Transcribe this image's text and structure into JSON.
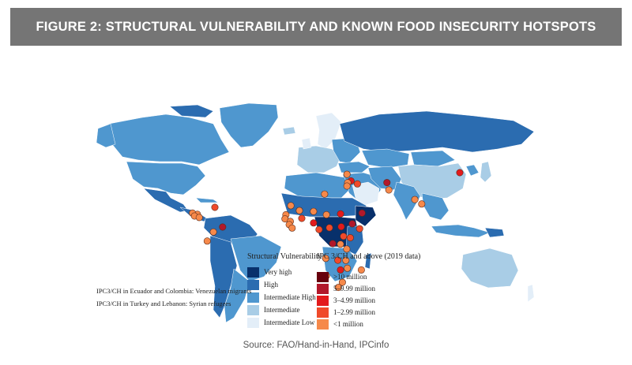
{
  "figure": {
    "title": "FIGURE 2: STRUCTURAL VULNERABILITY AND KNOWN FOOD INSECURITY HOTSPOTS"
  },
  "source": "Source: FAO/Hand-in-Hand, IPCinfo",
  "colors": {
    "banner": "#757575",
    "ocean": "#ffffff"
  },
  "legend_vulnerability": {
    "title": "Structural Vulnerability",
    "items": [
      {
        "label": "Very high",
        "color": "#08306b"
      },
      {
        "label": "High",
        "color": "#2b6cb0"
      },
      {
        "label": "Intermediate High",
        "color": "#4f97cf"
      },
      {
        "label": "Intermediate",
        "color": "#a9cde6"
      },
      {
        "label": "Intermediate Low",
        "color": "#e3eef8"
      }
    ]
  },
  "legend_ipc": {
    "title": "IPC 3/CH and above (2019 data)",
    "items": [
      {
        "label": ">10 million",
        "color": "#67000d"
      },
      {
        "label": "5–9.99 million",
        "color": "#b2182b"
      },
      {
        "label": "3–4.99 million",
        "color": "#e31a1c"
      },
      {
        "label": "1–2.99 million",
        "color": "#f04a2a"
      },
      {
        "label": "<1 million",
        "color": "#f6894a"
      }
    ]
  },
  "notes": [
    "IPC3/CH in Ecuador and Colombia: Venezuelan migrants",
    "IPC3/CH in Turkey and Lebanon: Syrian refugees"
  ],
  "hotspots": [
    {
      "name": "Haiti",
      "lon": -72.3,
      "lat": 19.0,
      "tier": 3
    },
    {
      "name": "Honduras",
      "lon": -86.5,
      "lat": 14.7,
      "tier": 4
    },
    {
      "name": "Guatemala",
      "lon": -90.5,
      "lat": 15.5,
      "tier": 4
    },
    {
      "name": "El Salvador",
      "lon": -88.9,
      "lat": 13.7,
      "tier": 4
    },
    {
      "name": "Nicaragua",
      "lon": -85.0,
      "lat": 12.8,
      "tier": 4
    },
    {
      "name": "Venezuela",
      "lon": -66.0,
      "lat": 7.0,
      "tier": 1
    },
    {
      "name": "Colombia",
      "lon": -73.5,
      "lat": 4.0,
      "tier": 4
    },
    {
      "name": "Ecuador",
      "lon": -78.5,
      "lat": -1.5,
      "tier": 4
    },
    {
      "name": "Mauritania",
      "lon": -10.5,
      "lat": 20.0,
      "tier": 4
    },
    {
      "name": "Senegal",
      "lon": -14.5,
      "lat": 14.5,
      "tier": 4
    },
    {
      "name": "Guinea-Bissau",
      "lon": -15.2,
      "lat": 12.0,
      "tier": 4
    },
    {
      "name": "Guinea",
      "lon": -10.9,
      "lat": 10.4,
      "tier": 4
    },
    {
      "name": "Sierra Leone",
      "lon": -11.8,
      "lat": 8.5,
      "tier": 4
    },
    {
      "name": "Liberia",
      "lon": -9.4,
      "lat": 6.4,
      "tier": 4
    },
    {
      "name": "Mali",
      "lon": -3.5,
      "lat": 17.0,
      "tier": 4
    },
    {
      "name": "Burkina Faso",
      "lon": -1.6,
      "lat": 12.3,
      "tier": 3
    },
    {
      "name": "Niger",
      "lon": 8.0,
      "lat": 16.5,
      "tier": 4
    },
    {
      "name": "Nigeria",
      "lon": 8.0,
      "lat": 9.5,
      "tier": 2
    },
    {
      "name": "Cameroon",
      "lon": 12.5,
      "lat": 5.5,
      "tier": 3
    },
    {
      "name": "Chad",
      "lon": 18.5,
      "lat": 14.5,
      "tier": 4
    },
    {
      "name": "Central African Rep.",
      "lon": 20.9,
      "lat": 6.6,
      "tier": 3
    },
    {
      "name": "Sudan",
      "lon": 30.0,
      "lat": 15.0,
      "tier": 2
    },
    {
      "name": "South Sudan",
      "lon": 30.5,
      "lat": 7.2,
      "tier": 2
    },
    {
      "name": "Ethiopia",
      "lon": 39.5,
      "lat": 9.0,
      "tier": 1
    },
    {
      "name": "Somalia",
      "lon": 45.5,
      "lat": 6.0,
      "tier": 3
    },
    {
      "name": "Kenya",
      "lon": 37.9,
      "lat": 0.5,
      "tier": 3
    },
    {
      "name": "Uganda",
      "lon": 32.4,
      "lat": 1.4,
      "tier": 3
    },
    {
      "name": "DR Congo",
      "lon": 23.6,
      "lat": -3.0,
      "tier": 1
    },
    {
      "name": "Burundi",
      "lon": 29.9,
      "lat": -3.4,
      "tier": 4
    },
    {
      "name": "Tanzania",
      "lon": 35.0,
      "lat": -6.3,
      "tier": 4
    },
    {
      "name": "Angola",
      "lon": 17.9,
      "lat": -12.0,
      "tier": 4
    },
    {
      "name": "Zambia",
      "lon": 27.8,
      "lat": -13.1,
      "tier": 3
    },
    {
      "name": "Malawi",
      "lon": 34.3,
      "lat": -13.2,
      "tier": 4
    },
    {
      "name": "Zimbabwe",
      "lon": 29.9,
      "lat": -19.0,
      "tier": 2
    },
    {
      "name": "Mozambique",
      "lon": 35.5,
      "lat": -18.0,
      "tier": 4
    },
    {
      "name": "Madagascar",
      "lon": 46.9,
      "lat": -19.0,
      "tier": 4
    },
    {
      "name": "Namibia",
      "lon": 18.5,
      "lat": -22.5,
      "tier": 4
    },
    {
      "name": "eSwatini",
      "lon": 31.5,
      "lat": -26.5,
      "tier": 4
    },
    {
      "name": "Lesotho",
      "lon": 28.2,
      "lat": -29.6,
      "tier": 4
    },
    {
      "name": "Libya",
      "lon": 17.0,
      "lat": 27.0,
      "tier": 4
    },
    {
      "name": "Turkey",
      "lon": 35.2,
      "lat": 39.0,
      "tier": 4
    },
    {
      "name": "Syria",
      "lon": 38.5,
      "lat": 35.0,
      "tier": 2
    },
    {
      "name": "Lebanon",
      "lon": 35.8,
      "lat": 33.9,
      "tier": 4
    },
    {
      "name": "Palestine",
      "lon": 35.2,
      "lat": 31.9,
      "tier": 4
    },
    {
      "name": "Iraq",
      "lon": 43.7,
      "lat": 33.2,
      "tier": 3
    },
    {
      "name": "Yemen",
      "lon": 47.5,
      "lat": 15.5,
      "tier": 1
    },
    {
      "name": "Afghanistan",
      "lon": 67.7,
      "lat": 34.0,
      "tier": 1
    },
    {
      "name": "Pakistan",
      "lon": 69.3,
      "lat": 29.5,
      "tier": 4
    },
    {
      "name": "Bangladesh",
      "lon": 90.4,
      "lat": 23.7,
      "tier": 4
    },
    {
      "name": "Myanmar",
      "lon": 96.0,
      "lat": 21.0,
      "tier": 4
    },
    {
      "name": "DPR Korea",
      "lon": 127.0,
      "lat": 40.0,
      "tier": 2
    }
  ]
}
